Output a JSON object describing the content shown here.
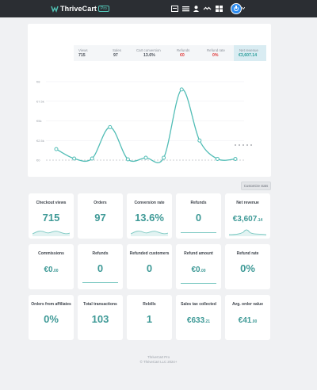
{
  "app": {
    "logo_text": "ThriveCart",
    "logo_badge": "Pro"
  },
  "nav": {
    "icons": [
      "dashboard-icon",
      "bars-icon",
      "user-icon",
      "affiliate-icon",
      "grid-icon"
    ],
    "account_icon": "power-icon"
  },
  "kpis": [
    {
      "label": "Views",
      "value": "715"
    },
    {
      "label": "Sales",
      "value": "97"
    },
    {
      "label": "Cart conversion",
      "value": "13.6%"
    },
    {
      "label": "Refunds",
      "value": "€0"
    },
    {
      "label": "Refund rate",
      "value": "0%"
    },
    {
      "label": "Net revenue",
      "value": "€3,607.14"
    }
  ],
  "chart_data": {
    "type": "line",
    "y_tick_labels": [
      "€8",
      "€7.5k",
      "€5k",
      "€2.5k",
      "€0"
    ],
    "series": [
      {
        "values": [
          1400,
          200,
          200,
          4200,
          100,
          300,
          300,
          9000,
          2500,
          150,
          150
        ]
      }
    ],
    "ylim": [
      0,
      10000
    ],
    "grid": true,
    "accent": "#52bdb6"
  },
  "customize_label": "Customize stats",
  "metrics": [
    {
      "title": "Checkout views",
      "value": "715",
      "spark": "wave"
    },
    {
      "title": "Orders",
      "value": "97",
      "spark": "none"
    },
    {
      "title": "Conversion rate",
      "value": "13.6%",
      "spark": "wave"
    },
    {
      "title": "Refunds",
      "value": "0",
      "spark": "flat"
    },
    {
      "title": "Net revenue",
      "value_main": "€3,607",
      "value_dec": ".14",
      "spark": "peak"
    },
    {
      "title": "Commissions",
      "value_main": "€0",
      "value_dec": ".00",
      "spark": "none"
    },
    {
      "title": "Refunds",
      "value": "0",
      "spark": "flat"
    },
    {
      "title": "Refunded customers",
      "value": "0",
      "spark": "none"
    },
    {
      "title": "Refund amount",
      "value_main": "€0",
      "value_dec": ".00",
      "spark": "flat"
    },
    {
      "title": "Refund rate",
      "value": "0%",
      "spark": "none"
    },
    {
      "title": "Orders from affiliates",
      "value": "0%",
      "spark": "none"
    },
    {
      "title": "Total transactions",
      "value": "103",
      "spark": "none"
    },
    {
      "title": "Rebills",
      "value": "1",
      "spark": "none"
    },
    {
      "title": "Sales tax collected",
      "value_main": "€633",
      "value_dec": ".21",
      "spark": "none"
    },
    {
      "title": "Avg. order value",
      "value_main": "€41",
      "value_dec": ".00",
      "spark": "none"
    }
  ],
  "footer": {
    "line1": "ThriveCart Pro",
    "line2": "© ThriveCart LLC 2024+"
  }
}
